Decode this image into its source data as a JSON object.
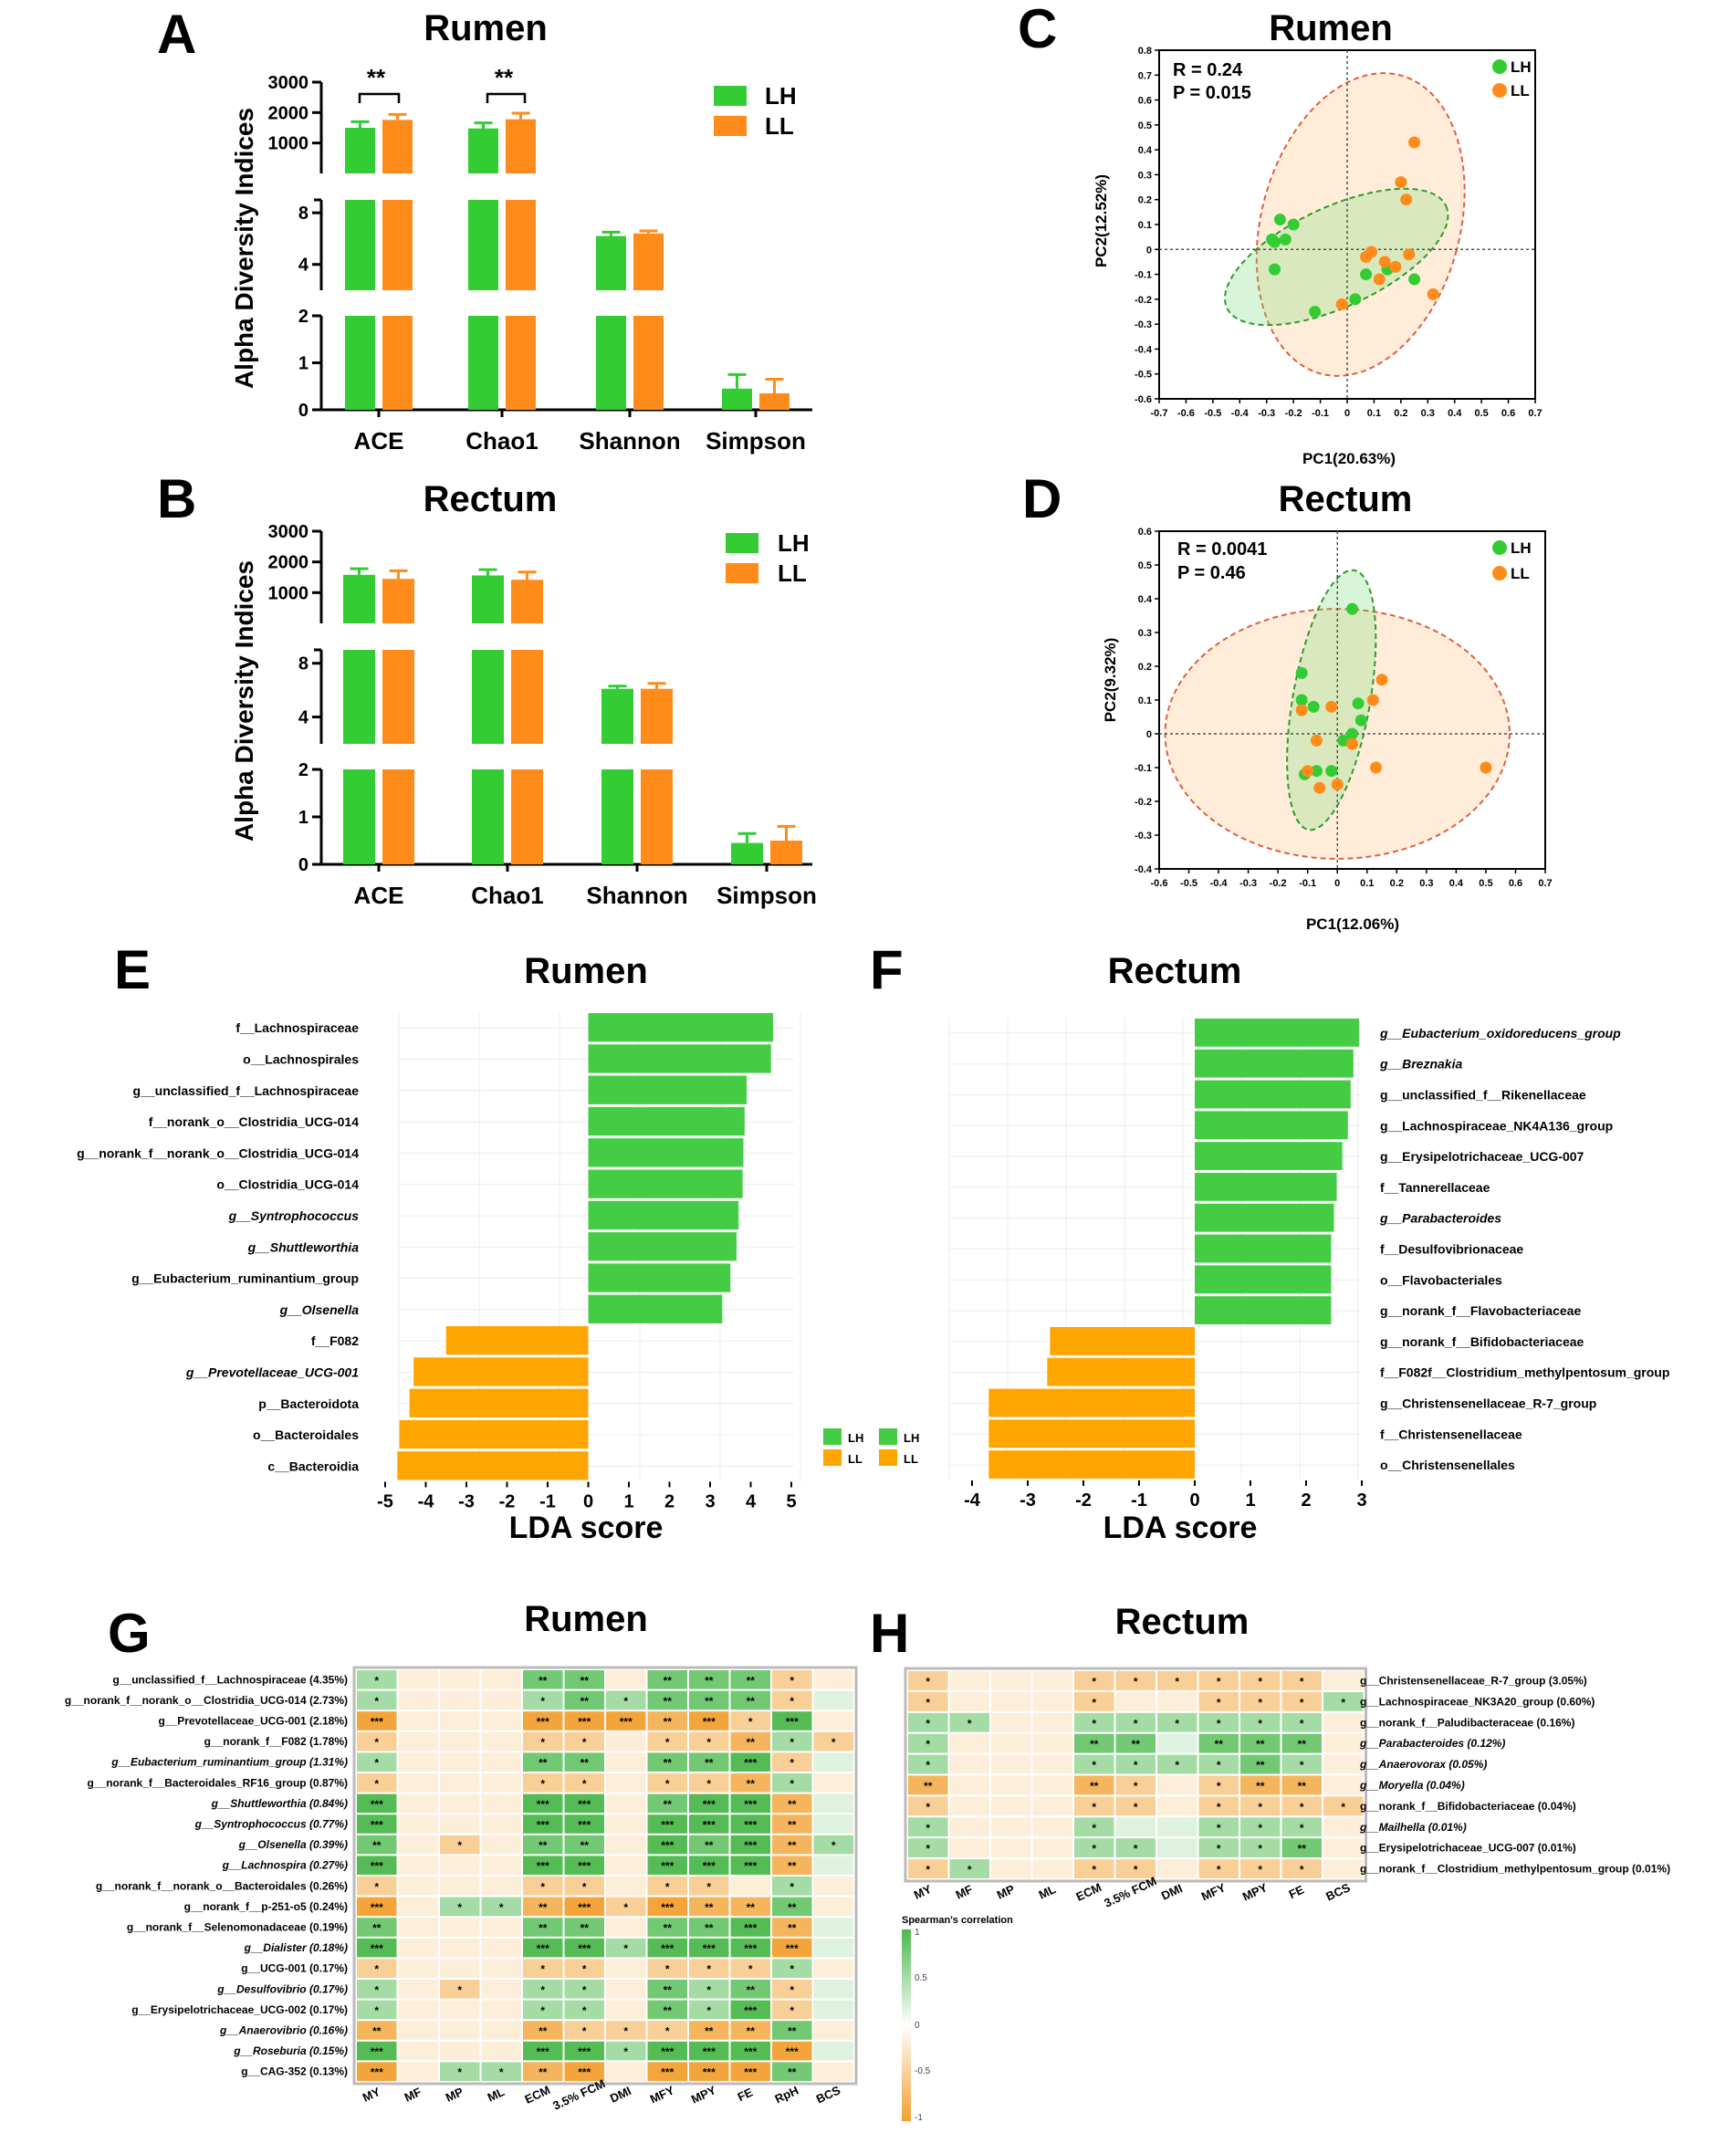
{
  "colors": {
    "green": "#33CC33",
    "orange": "#FF8C1A",
    "lda_green": "#44CC44",
    "lda_orange": "#FFA500",
    "heat_pos": "#4CB84C",
    "heat_neg": "#F2A030"
  },
  "legend": {
    "lh": "LH",
    "ll": "LL"
  },
  "panels": {
    "A": {
      "letter": "A",
      "title": "Rumen",
      "ylabel": "Alpha Diversity Indices",
      "sig": [
        "**",
        "**"
      ]
    },
    "B": {
      "letter": "B",
      "title": "Rectum",
      "ylabel": "Alpha Diversity Indices"
    },
    "C": {
      "letter": "C",
      "title": "Rumen",
      "stat_r": "R = 0.24",
      "stat_p": "P = 0.015",
      "xlabel": "PC1(20.63%)",
      "ylabel": "PC2(12.52%)"
    },
    "D": {
      "letter": "D",
      "title": "Rectum",
      "stat_r": "R = 0.0041",
      "stat_p": "P = 0.46",
      "xlabel": "PC1(12.06%)",
      "ylabel": "PC2(9.32%)"
    },
    "E": {
      "letter": "E",
      "title": "Rumen",
      "xlabel": "LDA score"
    },
    "F": {
      "letter": "F",
      "title": "Rectum",
      "xlabel": "LDA score"
    },
    "G": {
      "letter": "G",
      "title": "Rumen"
    },
    "H": {
      "letter": "H",
      "title": "Rectum",
      "legend_title": "Spearman's correlation",
      "legend_ticks": [
        "1",
        "0.5",
        "0",
        "-0.5",
        "-1"
      ]
    }
  },
  "chart_data": [
    {
      "id": "A",
      "type": "bar",
      "title": "Rumen",
      "ylabel": "Alpha Diversity Indices",
      "categories": [
        "ACE",
        "Chao1",
        "Shannon",
        "Simpson"
      ],
      "series": [
        {
          "name": "LH",
          "values": [
            1500,
            1480,
            6.2,
            0.45
          ],
          "errors": [
            200,
            180,
            0.3,
            0.3
          ]
        },
        {
          "name": "LL",
          "values": [
            1760,
            1780,
            6.4,
            0.35
          ],
          "errors": [
            180,
            200,
            0.2,
            0.3
          ]
        }
      ],
      "segments": [
        {
          "ylim": [
            0,
            2
          ],
          "ticks": [
            0,
            1,
            2
          ]
        },
        {
          "ylim": [
            2,
            9
          ],
          "ticks": [
            4,
            8
          ]
        },
        {
          "ylim": [
            0,
            3000
          ],
          "ticks": [
            1000,
            2000,
            3000
          ]
        }
      ]
    },
    {
      "id": "B",
      "type": "bar",
      "title": "Rectum",
      "ylabel": "Alpha Diversity Indices",
      "categories": [
        "ACE",
        "Chao1",
        "Shannon",
        "Simpson"
      ],
      "series": [
        {
          "name": "LH",
          "values": [
            1580,
            1560,
            6.1,
            0.45
          ],
          "errors": [
            200,
            190,
            0.2,
            0.2
          ]
        },
        {
          "name": "LL",
          "values": [
            1450,
            1420,
            6.1,
            0.5
          ],
          "errors": [
            260,
            250,
            0.4,
            0.3
          ]
        }
      ],
      "segments": [
        {
          "ylim": [
            0,
            2
          ],
          "ticks": [
            0,
            1,
            2
          ]
        },
        {
          "ylim": [
            2,
            9
          ],
          "ticks": [
            4,
            8
          ]
        },
        {
          "ylim": [
            0,
            3000
          ],
          "ticks": [
            1000,
            2000,
            3000
          ]
        }
      ]
    },
    {
      "id": "C",
      "type": "scatter",
      "title": "Rumen",
      "xlabel": "PC1(20.63%)",
      "ylabel": "PC2(12.52%)",
      "xlim": [
        -0.7,
        0.7
      ],
      "ylim": [
        -0.6,
        0.8
      ],
      "xticks": [
        -0.7,
        -0.6,
        -0.5,
        -0.4,
        -0.3,
        -0.2,
        -0.1,
        0,
        0.1,
        0.2,
        0.3,
        0.4,
        0.5,
        0.6,
        0.7
      ],
      "yticks": [
        -0.6,
        -0.5,
        -0.4,
        -0.3,
        -0.2,
        -0.1,
        0,
        0.1,
        0.2,
        0.3,
        0.4,
        0.5,
        0.6,
        0.7,
        0.8
      ],
      "series": [
        {
          "name": "LH",
          "points": [
            [
              -0.28,
              0.04
            ],
            [
              -0.27,
              0.03
            ],
            [
              -0.25,
              0.12
            ],
            [
              -0.2,
              0.1
            ],
            [
              -0.23,
              0.04
            ],
            [
              -0.27,
              -0.08
            ],
            [
              -0.12,
              -0.25
            ],
            [
              0.03,
              -0.2
            ],
            [
              0.07,
              -0.1
            ],
            [
              0.15,
              -0.08
            ],
            [
              0.25,
              -0.12
            ]
          ],
          "ellipse": {
            "cx": -0.04,
            "cy": -0.03,
            "rx": 0.45,
            "ry": 0.2,
            "angle": -25
          }
        },
        {
          "name": "LL",
          "points": [
            [
              0.25,
              0.43
            ],
            [
              0.2,
              0.27
            ],
            [
              0.22,
              0.2
            ],
            [
              0.07,
              -0.03
            ],
            [
              0.14,
              -0.05
            ],
            [
              0.18,
              -0.07
            ],
            [
              0.23,
              -0.02
            ],
            [
              0.12,
              -0.12
            ],
            [
              0.32,
              -0.18
            ],
            [
              -0.02,
              -0.22
            ],
            [
              0.09,
              -0.01
            ]
          ],
          "ellipse": {
            "cx": 0.05,
            "cy": 0.1,
            "rx": 0.37,
            "ry": 0.62,
            "angle": 15
          }
        }
      ]
    },
    {
      "id": "D",
      "type": "scatter",
      "title": "Rectum",
      "xlabel": "PC1(12.06%)",
      "ylabel": "PC2(9.32%)",
      "xlim": [
        -0.6,
        0.7
      ],
      "ylim": [
        -0.4,
        0.6
      ],
      "xticks": [
        -0.6,
        -0.5,
        -0.4,
        -0.3,
        -0.2,
        -0.1,
        0,
        0.1,
        0.2,
        0.3,
        0.4,
        0.5,
        0.6,
        0.7
      ],
      "yticks": [
        -0.4,
        -0.3,
        -0.2,
        -0.1,
        0,
        0.1,
        0.2,
        0.3,
        0.4,
        0.5,
        0.6
      ],
      "series": [
        {
          "name": "LH",
          "points": [
            [
              0.05,
              0.37
            ],
            [
              -0.12,
              0.18
            ],
            [
              -0.12,
              0.1
            ],
            [
              -0.08,
              0.08
            ],
            [
              0.07,
              0.09
            ],
            [
              0.08,
              0.04
            ],
            [
              0.02,
              -0.02
            ],
            [
              -0.07,
              -0.11
            ],
            [
              -0.02,
              -0.11
            ],
            [
              -0.11,
              -0.12
            ],
            [
              0.05,
              0.0
            ]
          ],
          "ellipse": {
            "cx": -0.02,
            "cy": 0.1,
            "rx": 0.13,
            "ry": 0.39,
            "angle": 10
          }
        },
        {
          "name": "LL",
          "points": [
            [
              -0.12,
              0.07
            ],
            [
              -0.02,
              0.08
            ],
            [
              0.12,
              0.1
            ],
            [
              0.15,
              0.16
            ],
            [
              -0.07,
              -0.02
            ],
            [
              -0.1,
              -0.11
            ],
            [
              -0.06,
              -0.16
            ],
            [
              0.0,
              -0.15
            ],
            [
              0.13,
              -0.1
            ],
            [
              0.5,
              -0.1
            ],
            [
              0.05,
              -0.03
            ]
          ],
          "ellipse": {
            "cx": 0.0,
            "cy": 0.0,
            "rx": 0.58,
            "ry": 0.37,
            "angle": 0
          }
        }
      ]
    },
    {
      "id": "E",
      "type": "bar",
      "title": "Rumen",
      "xlabel": "LDA score",
      "xlim": [
        -5,
        5
      ],
      "xticks": [
        -5,
        -4,
        -3,
        -2,
        -1,
        0,
        1,
        2,
        3,
        4,
        5
      ],
      "labels": [
        "f__Lachnospiraceae",
        "o__Lachnospirales",
        "g__unclassified_f__Lachnospiraceae",
        "f__norank_o__Clostridia_UCG-014",
        "g__norank_f__norank_o__Clostridia_UCG-014",
        "o__Clostridia_UCG-014",
        "g__Syntrophococcus",
        "g__Shuttleworthia",
        "g__Eubacterium_ruminantium_group",
        "g__Olsenella",
        "f__F082",
        "g__Prevotellaceae_UCG-001",
        "p__Bacteroidota",
        "o__Bacteroidales",
        "c__Bacteroidia"
      ],
      "values": [
        4.55,
        4.5,
        3.9,
        3.85,
        3.82,
        3.8,
        3.7,
        3.65,
        3.5,
        3.3,
        -3.5,
        -4.3,
        -4.4,
        -4.65,
        -4.7
      ],
      "italic": [
        false,
        false,
        false,
        false,
        false,
        false,
        true,
        true,
        false,
        true,
        false,
        true,
        false,
        false,
        false
      ],
      "groups": [
        "LH",
        "LH",
        "LH",
        "LH",
        "LH",
        "LH",
        "LH",
        "LH",
        "LH",
        "LH",
        "LL",
        "LL",
        "LL",
        "LL",
        "LL"
      ]
    },
    {
      "id": "F",
      "type": "bar",
      "title": "Rectum",
      "xlabel": "LDA score",
      "xlim": [
        -4,
        3
      ],
      "xticks": [
        -4,
        -3,
        -2,
        -1,
        0,
        1,
        2,
        3
      ],
      "labels": [
        "g__Eubacterium_oxidoreducens_group",
        "g__Breznakia",
        "g__unclassified_f__Rikenellaceae",
        "g__Lachnospiraceae_NK4A136_group",
        "g__Erysipelotrichaceae_UCG-007",
        "f__Tannerellaceae",
        "g__Parabacteroides",
        "f__Desulfovibrionaceae",
        "o__Flavobacteriales",
        "g__norank_f__Flavobacteriaceae",
        "g__norank_f__Bifidobacteriaceae",
        "f__F082f__Clostridium_methylpentosum_group",
        "g__Christensenellaceae_R-7_group",
        "f__Christensenellaceae",
        "o__Christensenellales"
      ],
      "values": [
        2.95,
        2.85,
        2.8,
        2.75,
        2.65,
        2.55,
        2.5,
        2.45,
        2.45,
        2.45,
        -2.6,
        -2.65,
        -3.7,
        -3.7,
        -3.7
      ],
      "italic": [
        true,
        true,
        false,
        false,
        false,
        false,
        true,
        false,
        false,
        false,
        false,
        false,
        false,
        false,
        false
      ],
      "groups": [
        "LH",
        "LH",
        "LH",
        "LH",
        "LH",
        "LH",
        "LH",
        "LH",
        "LH",
        "LH",
        "LL",
        "LL",
        "LL",
        "LL",
        "LL"
      ]
    },
    {
      "id": "G",
      "type": "heatmap",
      "title": "Rumen",
      "columns": [
        "MY",
        "MF",
        "MP",
        "ML",
        "ECM",
        "3.5% FCM",
        "DMI",
        "MFY",
        "MPY",
        "FE",
        "RpH",
        "BCS"
      ],
      "rows": [
        "g__unclassified_f__Lachnospiraceae (4.35%)",
        "g__norank_f__norank_o__Clostridia_UCG-014 (2.73%)",
        "g__Prevotellaceae_UCG-001 (2.18%)",
        "g__norank_f__F082 (1.78%)",
        "g__Eubacterium_ruminantium_group (1.31%)",
        "g__norank_f__Bacteroidales_RF16_group (0.87%)",
        "g__Shuttleworthia (0.84%)",
        "g__Syntrophococcus (0.77%)",
        "g__Olsenella (0.39%)",
        "g__Lachnospira (0.27%)",
        "g__norank_f__norank_o__Bacteroidales (0.26%)",
        "g__norank_f__p-251-o5 (0.24%)",
        "g__norank_f__Selenomonadaceae (0.19%)",
        "g__Dialister (0.18%)",
        "g__UCG-001 (0.17%)",
        "g__Desulfovibrio (0.17%)",
        "g__Erysipelotrichaceae_UCG-002 (0.17%)",
        "g__Anaerovibrio (0.16%)",
        "g__Roseburia (0.15%)",
        "g__CAG-352 (0.13%)"
      ],
      "italic": [
        false,
        false,
        false,
        false,
        true,
        false,
        true,
        true,
        true,
        true,
        false,
        false,
        false,
        true,
        false,
        true,
        false,
        true,
        true,
        false
      ],
      "signs": [
        "+ - - - + + - + + + - -",
        "+ - - - + + + + + + - +",
        "- - - - - - - - - - + -",
        "- - - - - - - - - - + -",
        "+ - - - + + - + + + - +",
        "- - - - - - - - - - + -",
        "+ - - - + + - + + + - +",
        "+ - - - + + - + + + - +",
        "+ - - - + + - + + + - +",
        "+ - - - + + - + + + - +",
        "- - - - - - - - - - + -",
        "- - + + - - - - - - + -",
        "+ - - - + + - + + + - +",
        "+ - - - + + + + + + - +",
        "- - - - - - - - - - + -",
        "+ - - - + + - + + + - +",
        "+ - - - + + - + + + - +",
        "- - - - - - - - - - + -",
        "+ - - - + + + + + + - +",
        "- - + + - - - - - - + -"
      ],
      "stars": [
        "* | | | ** ** | ** ** ** * |",
        "* | | | * ** * ** ** ** * |",
        "*** | | | *** *** *** ** *** * *** |",
        "* | | | * * | * * ** * *",
        "* | | | ** ** | ** ** *** * |",
        "* | | | * * | * * ** * |",
        "*** | | | *** *** | ** *** *** ** |",
        "*** | | | *** *** | *** *** *** ** |",
        "** | * | ** ** | *** ** *** ** *",
        "*** | | | *** *** | *** *** *** ** |",
        "* | | | * * | * * | * |",
        "*** | * * ** *** * *** ** ** ** |",
        "** | | | ** ** | ** ** *** ** |",
        "*** | | | *** *** * *** *** *** *** |",
        "* | | | * * | * * * * |",
        "* | * | * * | ** * ** * |",
        "* | | | * * | ** * *** * |",
        "** | | | ** * * * ** ** ** |",
        "*** | | | *** *** * *** *** *** *** |",
        "*** | * * ** *** | *** *** *** ** |"
      ]
    },
    {
      "id": "H",
      "type": "heatmap",
      "title": "Rectum",
      "columns": [
        "MY",
        "MF",
        "MP",
        "ML",
        "ECM",
        "3.5% FCM",
        "DMI",
        "MFY",
        "MPY",
        "FE",
        "BCS"
      ],
      "rows": [
        "g__Christensenellaceae_R-7_group (3.05%)",
        "g__Lachnospiraceae_NK3A20_group (0.60%)",
        "g__norank_f__Paludibacteraceae (0.16%)",
        "g__Parabacteroides (0.12%)",
        "g__Anaerovorax (0.05%)",
        "g__Moryella (0.04%)",
        "g__norank_f__Bifidobacteriaceae (0.04%)",
        "g__Mailhella (0.01%)",
        "g__Erysipelotrichaceae_UCG-007 (0.01%)",
        "g__norank_f__Clostridium_methylpentosum_group (0.01%)"
      ],
      "italic": [
        false,
        false,
        false,
        true,
        true,
        true,
        false,
        true,
        false,
        false
      ],
      "signs": [
        "- - - - - - - - - - -",
        "- - - - - - - - - - +",
        "+ + - - + + + + + + -",
        "+ - - - + + + + + + -",
        "+ - - - + + + + + + -",
        "- - - - - - - - - - -",
        "- - - - - - - - - - -",
        "+ - - - + + + + + + -",
        "+ - - - + + + + + + -",
        "- + - - - - - - - - -"
      ],
      "stars": [
        "* | | | * * * * * * |",
        "* | | | * | | * * * *",
        "* * | | * * * * * * |",
        "* | | | ** ** | ** ** ** |",
        "* | | | * * * * ** * |",
        "** | | | ** * | * ** ** |",
        "* | | | * * | * * * *",
        "* | | | * | | * * * |",
        "* | | | * * | * * ** |",
        "* * | | * * | * * * |"
      ]
    }
  ]
}
